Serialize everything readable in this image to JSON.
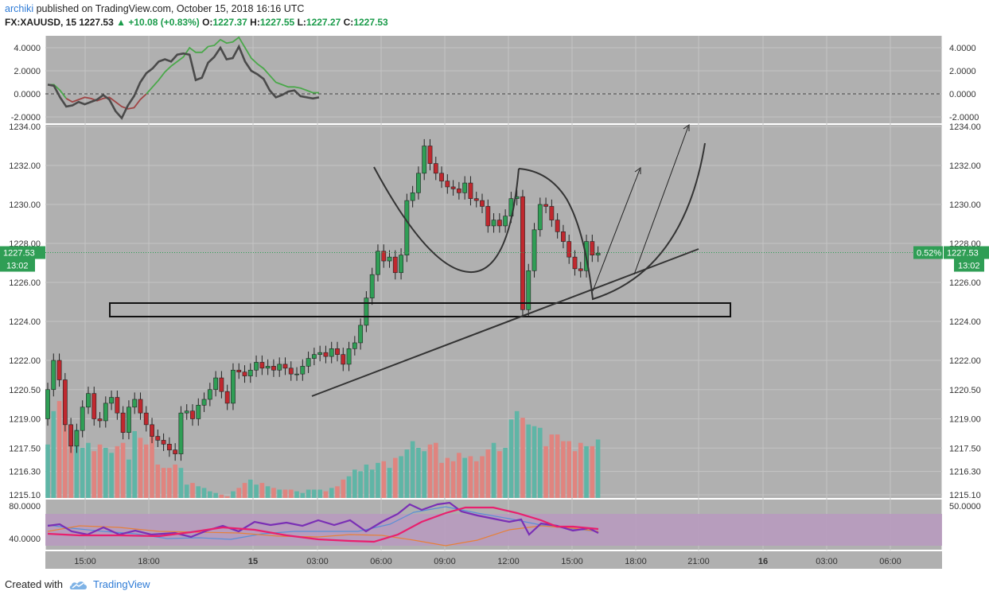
{
  "header": {
    "author": "archiki",
    "published": "published on TradingView.com, October 15, 2018 16:16 UTC",
    "symbol": "FX:XAUUSD, 15",
    "price": "1227.53",
    "change": "+10.08 (+0.83%)",
    "o_label": "O:",
    "o_value": "1227.37",
    "h_label": "H:",
    "h_value": "1227.55",
    "l_label": "L:",
    "l_value": "1227.27",
    "c_label": "C:",
    "c_value": "1227.53"
  },
  "footer": {
    "created_with": "Created with",
    "brand": "TradingView"
  },
  "colors": {
    "background": "#b0b0b0",
    "up": "#2f9e55",
    "down": "#c0282e",
    "vol_up": "#5fb5a6",
    "vol_down": "#e0847f",
    "macd": "#4a4a4a",
    "signal_up": "#4aa84a",
    "signal_down": "#a04545",
    "rsi_band": "#b89ac0",
    "price_tag": "#2f9e55"
  },
  "chart_data": [
    {
      "type": "line",
      "panel": "oscillator",
      "yticks": [
        "4.0000",
        "2.0000",
        "0.0000",
        "-2.0000"
      ],
      "ylim": [
        -2.0,
        4.0
      ],
      "x": [
        0,
        2,
        4,
        6,
        8,
        10,
        12,
        14,
        16,
        18,
        20,
        22,
        24,
        26,
        28,
        30,
        32,
        34,
        36,
        38,
        40,
        42,
        44,
        46,
        48,
        50,
        52,
        54,
        56,
        58,
        60,
        62,
        64,
        66,
        68,
        70,
        72,
        74,
        76,
        78,
        80,
        82,
        84,
        86,
        88
      ],
      "series": [
        {
          "values": [
            0.8,
            0.7,
            -0.3,
            -1.1,
            -1.0,
            -0.7,
            -0.9,
            -0.7,
            -0.5,
            -0.1,
            -0.5,
            -1.5,
            -2.1,
            -1.0,
            -0.2,
            1.0,
            1.8,
            2.2,
            2.8,
            3.0,
            2.8,
            3.4,
            3.5,
            3.4,
            1.2,
            1.4,
            2.7,
            3.2,
            4.0,
            3.0,
            3.1,
            4.1,
            2.8,
            2.0,
            1.7,
            1.3,
            0.3,
            -0.3,
            -0.1,
            0.2,
            0.3,
            -0.2,
            -0.3,
            -0.4,
            -0.3
          ]
        },
        {
          "values": [
            0.8,
            0.8,
            0.3,
            -0.4,
            -0.7,
            -0.5,
            -0.3,
            -0.4,
            -0.6,
            -0.4,
            -0.3,
            -0.7,
            -1.1,
            -1.3,
            -1.2,
            -0.5,
            0.0,
            0.6,
            1.2,
            1.9,
            2.4,
            2.8,
            3.2,
            4.0,
            3.6,
            3.6,
            4.1,
            4.2,
            4.7,
            4.4,
            4.5,
            4.9,
            4.0,
            3.1,
            2.6,
            2.2,
            1.6,
            1.0,
            0.8,
            0.6,
            0.6,
            0.5,
            0.3,
            0.1,
            0.1
          ]
        }
      ]
    },
    {
      "type": "candlestick",
      "panel": "price",
      "yticks": [
        "1234.00",
        "1232.00",
        "1230.00",
        "1228.00",
        "1226.00",
        "1224.00",
        "1222.00",
        "1220.50",
        "1219.00",
        "1217.50",
        "1216.30",
        "1215.10"
      ],
      "last_price": "1227.53",
      "last_pct": "0.52%",
      "countdown": "13:02",
      "xticks": [
        "15:00",
        "18:00",
        "15",
        "03:00",
        "06:00",
        "09:00",
        "12:00",
        "15:00",
        "18:00",
        "21:00",
        "16",
        "03:00",
        "06:00"
      ],
      "ohlc_close": [
        1220.5,
        1222.0,
        1221.0,
        1218.7,
        1217.6,
        1218.4,
        1219.6,
        1220.3,
        1219.0,
        1218.9,
        1219.8,
        1220.1,
        1219.3,
        1218.3,
        1219.6,
        1220.0,
        1219.3,
        1218.7,
        1218.1,
        1217.9,
        1217.7,
        1217.4,
        1217.2,
        1219.3,
        1219.4,
        1219.0,
        1219.7,
        1220.0,
        1220.5,
        1221.1,
        1220.4,
        1219.8,
        1221.5,
        1221.4,
        1221.2,
        1221.5,
        1221.9,
        1221.6,
        1221.7,
        1221.5,
        1221.8,
        1221.6,
        1221.3,
        1221.3,
        1221.7,
        1222.1,
        1222.3,
        1222.4,
        1222.2,
        1222.6,
        1222.3,
        1221.8,
        1222.6,
        1222.9,
        1223.8,
        1225.2,
        1226.4,
        1227.6,
        1227.1,
        1227.3,
        1226.5,
        1227.4,
        1230.2,
        1230.6,
        1231.6,
        1233.0,
        1232.1,
        1231.6,
        1231.2,
        1230.9,
        1230.8,
        1230.6,
        1231.1,
        1230.3,
        1230.2,
        1229.9,
        1228.9,
        1229.2,
        1228.9,
        1229.4,
        1230.3,
        1230.4,
        1224.6,
        1226.6,
        1228.7,
        1230.0,
        1229.9,
        1229.2,
        1228.6,
        1228.1,
        1227.3,
        1226.7,
        1226.6,
        1228.1,
        1227.4,
        1227.5
      ],
      "volume": [
        32,
        52,
        58,
        50,
        40,
        41,
        30,
        33,
        28,
        32,
        30,
        27,
        31,
        33,
        23,
        40,
        36,
        32,
        38,
        20,
        18,
        18,
        20,
        18,
        8,
        9,
        7,
        6,
        4,
        3,
        2,
        1,
        4,
        6,
        9,
        11,
        8,
        9,
        7,
        6,
        5,
        5,
        5,
        4,
        3,
        5,
        5,
        5,
        4,
        6,
        7,
        11,
        13,
        17,
        16,
        20,
        17,
        21,
        22,
        18,
        24,
        25,
        29,
        34,
        30,
        28,
        32,
        33,
        21,
        24,
        22,
        27,
        24,
        25,
        22,
        25,
        29,
        33,
        28,
        30,
        47,
        52,
        48,
        44,
        43,
        42,
        31,
        38,
        38,
        34,
        34,
        28,
        33,
        31,
        31,
        35
      ]
    },
    {
      "type": "line",
      "panel": "rsi",
      "yticks": [
        "80.0000",
        "40.0000",
        "50.0000"
      ],
      "ylim": [
        20,
        90
      ]
    }
  ]
}
